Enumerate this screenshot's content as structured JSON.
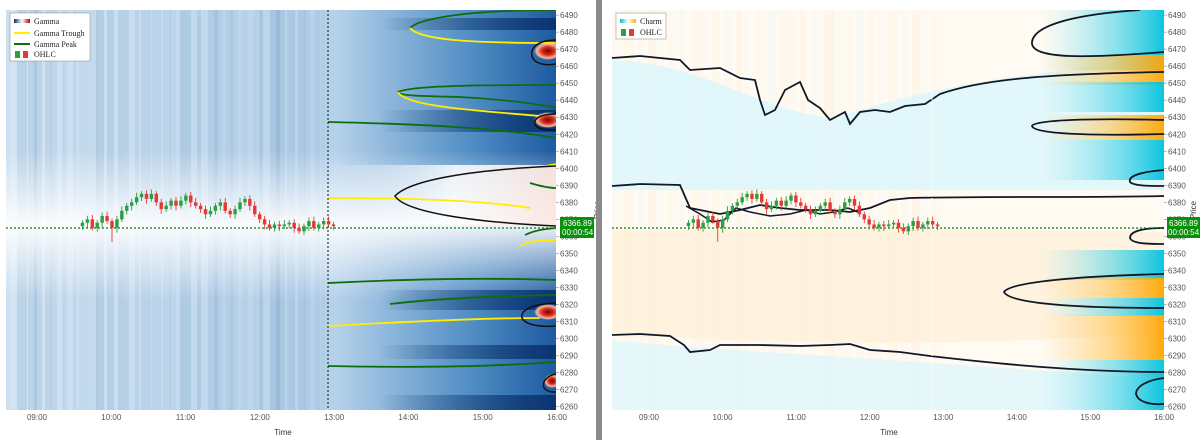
{
  "colors": {
    "gamma_low": "#08519c",
    "gamma_mid": "#c6dbef",
    "gamma_high": "#b30000",
    "charm_pos": "#ffb300",
    "charm_neg": "#00bcd4",
    "contour": "#101828",
    "candle_up": "#2e9e44",
    "candle_down": "#e53935",
    "price_line": "#0a7a0a",
    "badge": "#0a8f0a",
    "trough": "#ffee00",
    "peak": "#0b6e0b"
  },
  "chart_data": [
    {
      "type": "heatmap",
      "name": "Gamma",
      "x_ticks": [
        "09:00",
        "10:00",
        "11:00",
        "12:00",
        "13:00",
        "14:00",
        "15:00",
        "16:00"
      ],
      "xlabel": "Time",
      "y_ticks": [
        6260,
        6270,
        6280,
        6290,
        6300,
        6310,
        6320,
        6330,
        6340,
        6350,
        6360,
        6370,
        6380,
        6390,
        6400,
        6410,
        6420,
        6430,
        6440,
        6450,
        6460,
        6470,
        6480,
        6490
      ],
      "ylim": [
        6258,
        6493
      ],
      "ylabel": "Price",
      "legend": [
        {
          "label": "Gamma",
          "kind": "colorbar"
        },
        {
          "label": "Gamma Trough",
          "kind": "line",
          "color": "#ffee00"
        },
        {
          "label": "Gamma Peak",
          "kind": "line",
          "color": "#0b6e0b"
        },
        {
          "label": "OHLC",
          "kind": "candle"
        }
      ],
      "legend_position": "top-left",
      "current_price": "6366.89",
      "countdown": "00:00:54",
      "current_time": "12:50"
    },
    {
      "type": "heatmap",
      "name": "Charm",
      "x_ticks": [
        "09:00",
        "10:00",
        "11:00",
        "12:00",
        "13:00",
        "14:00",
        "15:00",
        "16:00"
      ],
      "xlabel": "Time",
      "y_ticks": [
        6260,
        6270,
        6280,
        6290,
        6300,
        6310,
        6320,
        6330,
        6340,
        6350,
        6360,
        6370,
        6380,
        6390,
        6400,
        6410,
        6420,
        6430,
        6440,
        6450,
        6460,
        6470,
        6480,
        6490
      ],
      "ylim": [
        6258,
        6493
      ],
      "ylabel": "Price",
      "legend": [
        {
          "label": "Charm",
          "kind": "colorbar"
        },
        {
          "label": "OHLC",
          "kind": "candle"
        }
      ],
      "legend_position": "top-left",
      "current_price": "6366.89",
      "countdown": "00:00:54",
      "current_time": "12:50"
    }
  ],
  "ohlc_close": [
    6368,
    6370,
    6365,
    6368,
    6372,
    6369,
    6365,
    6370,
    6375,
    6378,
    6380,
    6383,
    6385,
    6382,
    6385,
    6380,
    6376,
    6378,
    6381,
    6378,
    6381,
    6384,
    6380,
    6378,
    6376,
    6373,
    6375,
    6378,
    6380,
    6375,
    6373,
    6376,
    6380,
    6382,
    6378,
    6373,
    6370,
    6367,
    6365,
    6367,
    6366,
    6367,
    6368,
    6365,
    6363,
    6366,
    6369,
    6365,
    6367,
    6369,
    6367,
    6366
  ]
}
